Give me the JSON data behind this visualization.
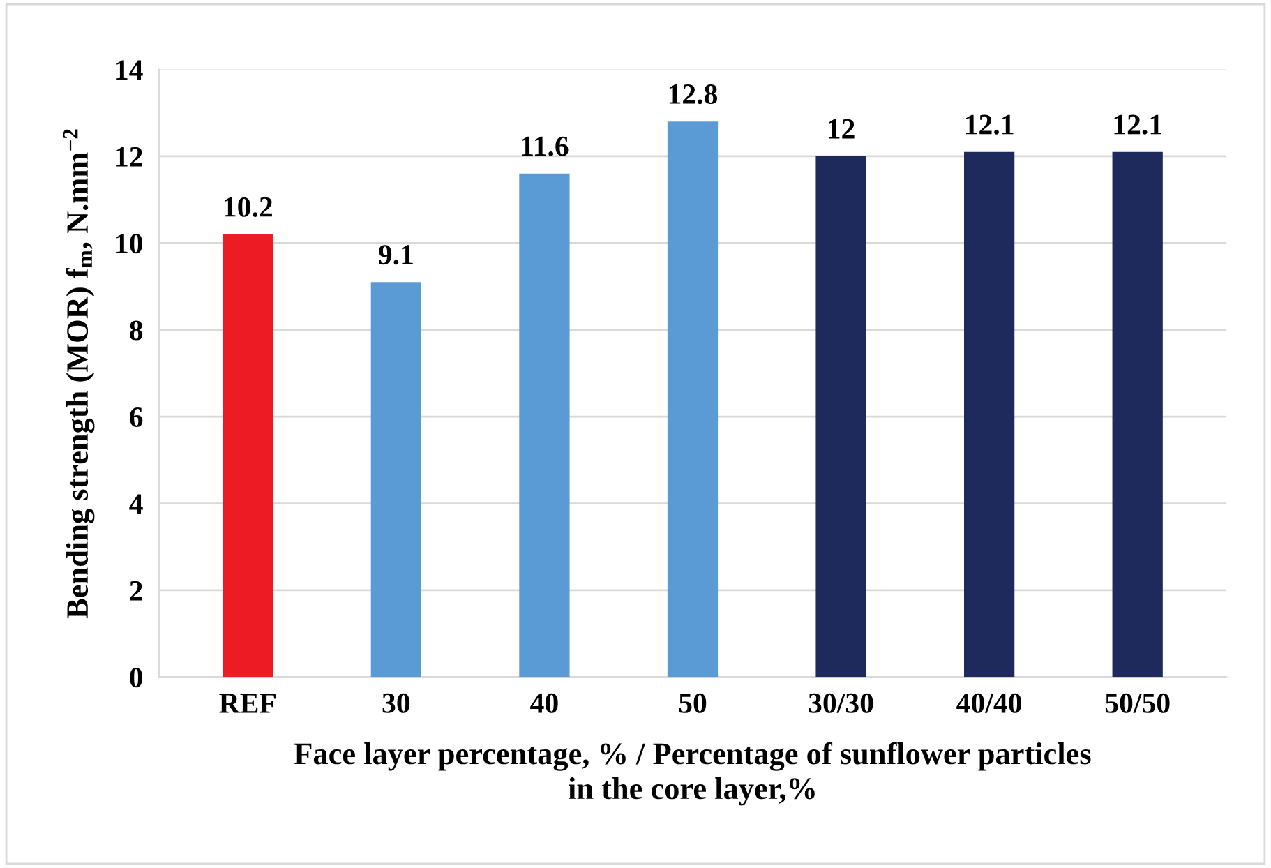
{
  "chart_data": {
    "type": "bar",
    "categories": [
      "REF",
      "30",
      "40",
      "50",
      "30/30",
      "40/40",
      "50/50"
    ],
    "values": [
      10.2,
      9.1,
      11.6,
      12.8,
      12,
      12.1,
      12.1
    ],
    "colors": [
      "#ed1c24",
      "#5b9bd5",
      "#5b9bd5",
      "#5b9bd5",
      "#1f2a5c",
      "#1f2a5c",
      "#1f2a5c"
    ],
    "ylabel": "Bending strength (MOR) f$_{m}$, N.mm$^{−2}$",
    "xlabel": "Face layer percentage, % / Percentage of sunflower particles\nin the core layer,%",
    "ylim": [
      0,
      14
    ],
    "yticks": [
      0,
      2,
      4,
      6,
      8,
      10,
      12,
      14
    ],
    "grid": "y",
    "data_labels": true,
    "legend": false
  }
}
